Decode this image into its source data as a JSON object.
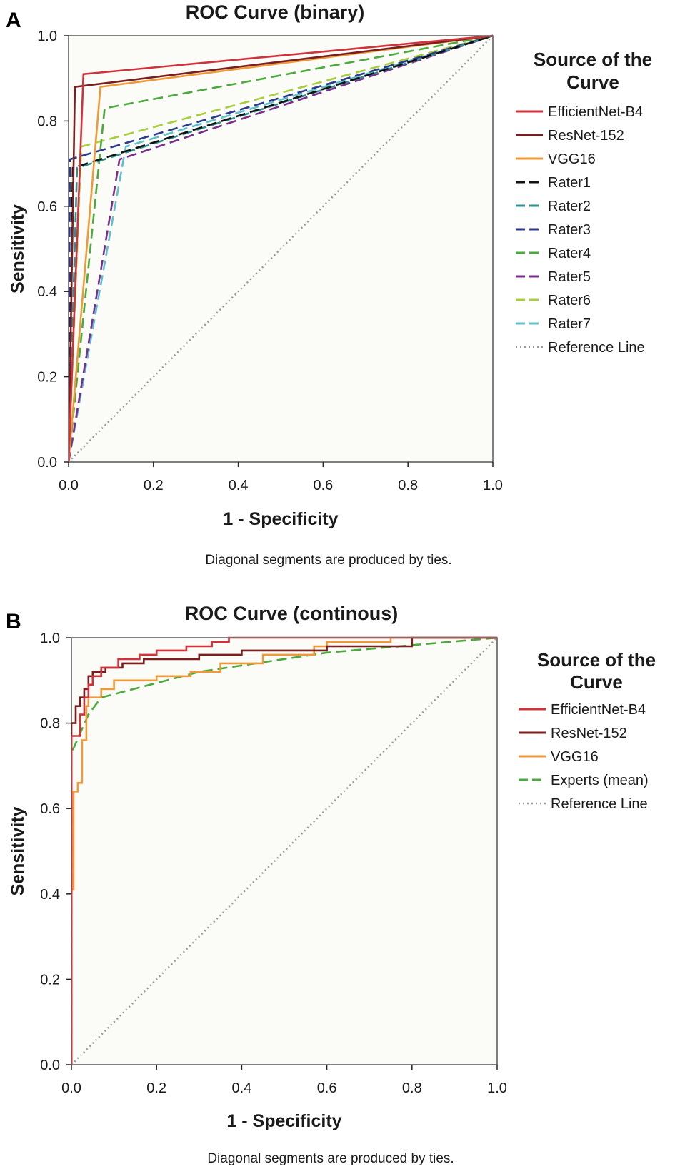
{
  "chart_data": [
    {
      "panel": "A",
      "type": "line",
      "title": "ROC Curve (binary)",
      "xlabel": "1 - Specificity",
      "ylabel": "Sensitivity",
      "xlim": [
        0,
        1
      ],
      "ylim": [
        0,
        1
      ],
      "xticks": [
        "0.0",
        "0.2",
        "0.4",
        "0.6",
        "0.8",
        "1.0"
      ],
      "yticks": [
        "0.0",
        "0.2",
        "0.4",
        "0.6",
        "0.8",
        "1.0"
      ],
      "note": "Diagonal segments are produced by ties.",
      "legend_title": "Source of the Curve",
      "legend_position": "right",
      "series": [
        {
          "name": "EfficientNet-B4",
          "color": "#d0333b",
          "dash": "solid",
          "points": [
            [
              0,
              0
            ],
            [
              0.035,
              0.91
            ],
            [
              1,
              1
            ]
          ]
        },
        {
          "name": "ResNet-152",
          "color": "#7a1f1f",
          "dash": "solid",
          "points": [
            [
              0,
              0
            ],
            [
              0.015,
              0.88
            ],
            [
              1,
              1
            ]
          ]
        },
        {
          "name": "VGG16",
          "color": "#ee9a3a",
          "dash": "solid",
          "points": [
            [
              0,
              0
            ],
            [
              0.075,
              0.88
            ],
            [
              1,
              1
            ]
          ]
        },
        {
          "name": "Rater1",
          "color": "#111111",
          "dash": "dashed",
          "points": [
            [
              0,
              0
            ],
            [
              0.01,
              0.69
            ],
            [
              1,
              1
            ]
          ]
        },
        {
          "name": "Rater2",
          "color": "#2f8f8f",
          "dash": "dashed",
          "points": [
            [
              0,
              0
            ],
            [
              0.02,
              0.69
            ],
            [
              1,
              1
            ]
          ]
        },
        {
          "name": "Rater3",
          "color": "#2b3a8c",
          "dash": "dashed",
          "points": [
            [
              0,
              0
            ],
            [
              0.003,
              0.71
            ],
            [
              1,
              1
            ]
          ]
        },
        {
          "name": "Rater4",
          "color": "#4aaa3c",
          "dash": "dashed",
          "points": [
            [
              0,
              0
            ],
            [
              0.085,
              0.83
            ],
            [
              1,
              1
            ]
          ]
        },
        {
          "name": "Rater5",
          "color": "#7b2d8e",
          "dash": "dashed",
          "points": [
            [
              0,
              0
            ],
            [
              0.12,
              0.71
            ],
            [
              1,
              1
            ]
          ]
        },
        {
          "name": "Rater6",
          "color": "#a7cf3c",
          "dash": "dashed",
          "points": [
            [
              0,
              0
            ],
            [
              0.03,
              0.74
            ],
            [
              1,
              1
            ]
          ]
        },
        {
          "name": "Rater7",
          "color": "#5ec0cc",
          "dash": "dashed",
          "points": [
            [
              0,
              0
            ],
            [
              0.135,
              0.74
            ],
            [
              1,
              1
            ]
          ]
        },
        {
          "name": "Reference Line",
          "color": "#9a9a9a",
          "dash": "dotted",
          "points": [
            [
              0,
              0
            ],
            [
              1,
              1
            ]
          ]
        }
      ]
    },
    {
      "panel": "B",
      "type": "line",
      "title": "ROC Curve (continous)",
      "xlabel": "1 - Specificity",
      "ylabel": "Sensitivity",
      "xlim": [
        0,
        1
      ],
      "ylim": [
        0,
        1
      ],
      "xticks": [
        "0.0",
        "0.2",
        "0.4",
        "0.6",
        "0.8",
        "1.0"
      ],
      "yticks": [
        "0.0",
        "0.2",
        "0.4",
        "0.6",
        "0.8",
        "1.0"
      ],
      "note": "Diagonal segments are produced by ties.",
      "legend_title": "Source of the Curve",
      "legend_position": "right",
      "series": [
        {
          "name": "EfficientNet-B4",
          "color": "#d0333b",
          "dash": "solid",
          "points": [
            [
              0,
              0
            ],
            [
              0,
              0.73
            ],
            [
              0,
              0.77
            ],
            [
              0.02,
              0.77
            ],
            [
              0.02,
              0.82
            ],
            [
              0.03,
              0.82
            ],
            [
              0.03,
              0.86
            ],
            [
              0.04,
              0.86
            ],
            [
              0.04,
              0.89
            ],
            [
              0.05,
              0.89
            ],
            [
              0.05,
              0.91
            ],
            [
              0.07,
              0.91
            ],
            [
              0.07,
              0.93
            ],
            [
              0.11,
              0.93
            ],
            [
              0.11,
              0.95
            ],
            [
              0.16,
              0.95
            ],
            [
              0.16,
              0.96
            ],
            [
              0.2,
              0.96
            ],
            [
              0.2,
              0.97
            ],
            [
              0.27,
              0.97
            ],
            [
              0.27,
              0.98
            ],
            [
              0.33,
              0.98
            ],
            [
              0.33,
              0.99
            ],
            [
              0.37,
              0.99
            ],
            [
              0.37,
              1
            ],
            [
              1,
              1
            ]
          ]
        },
        {
          "name": "ResNet-152",
          "color": "#7a1f1f",
          "dash": "solid",
          "points": [
            [
              0,
              0
            ],
            [
              0,
              0.75
            ],
            [
              0,
              0.8
            ],
            [
              0.01,
              0.8
            ],
            [
              0.01,
              0.84
            ],
            [
              0.02,
              0.84
            ],
            [
              0.02,
              0.86
            ],
            [
              0.03,
              0.86
            ],
            [
              0.03,
              0.88
            ],
            [
              0.04,
              0.88
            ],
            [
              0.04,
              0.91
            ],
            [
              0.05,
              0.91
            ],
            [
              0.05,
              0.92
            ],
            [
              0.08,
              0.92
            ],
            [
              0.08,
              0.93
            ],
            [
              0.12,
              0.93
            ],
            [
              0.12,
              0.94
            ],
            [
              0.17,
              0.94
            ],
            [
              0.17,
              0.95
            ],
            [
              0.3,
              0.95
            ],
            [
              0.3,
              0.96
            ],
            [
              0.4,
              0.96
            ],
            [
              0.4,
              0.97
            ],
            [
              0.6,
              0.97
            ],
            [
              0.6,
              0.98
            ],
            [
              0.8,
              0.98
            ],
            [
              0.8,
              1
            ],
            [
              1,
              1
            ]
          ]
        },
        {
          "name": "VGG16",
          "color": "#ee9a3a",
          "dash": "solid",
          "points": [
            [
              0,
              0
            ],
            [
              0,
              0.41
            ],
            [
              0.005,
              0.41
            ],
            [
              0.005,
              0.64
            ],
            [
              0.015,
              0.64
            ],
            [
              0.015,
              0.66
            ],
            [
              0.025,
              0.66
            ],
            [
              0.025,
              0.76
            ],
            [
              0.035,
              0.76
            ],
            [
              0.035,
              0.84
            ],
            [
              0.04,
              0.84
            ],
            [
              0.04,
              0.86
            ],
            [
              0.07,
              0.86
            ],
            [
              0.07,
              0.88
            ],
            [
              0.1,
              0.88
            ],
            [
              0.1,
              0.9
            ],
            [
              0.2,
              0.9
            ],
            [
              0.2,
              0.91
            ],
            [
              0.28,
              0.91
            ],
            [
              0.28,
              0.92
            ],
            [
              0.35,
              0.92
            ],
            [
              0.35,
              0.94
            ],
            [
              0.45,
              0.94
            ],
            [
              0.45,
              0.96
            ],
            [
              0.57,
              0.96
            ],
            [
              0.57,
              0.98
            ],
            [
              0.6,
              0.98
            ],
            [
              0.6,
              0.99
            ],
            [
              0.75,
              0.99
            ],
            [
              0.75,
              1
            ],
            [
              1,
              1
            ]
          ]
        },
        {
          "name": "Experts (mean)",
          "color": "#4aaa3c",
          "dash": "dashed",
          "points": [
            [
              0,
              0
            ],
            [
              0,
              0.73
            ],
            [
              0.04,
              0.82
            ],
            [
              0.07,
              0.86
            ],
            [
              0.3,
              0.92
            ],
            [
              0.6,
              0.965
            ],
            [
              1,
              1
            ]
          ]
        },
        {
          "name": "Reference Line",
          "color": "#9a9a9a",
          "dash": "dotted",
          "points": [
            [
              0,
              0
            ],
            [
              1,
              1
            ]
          ]
        }
      ]
    }
  ]
}
